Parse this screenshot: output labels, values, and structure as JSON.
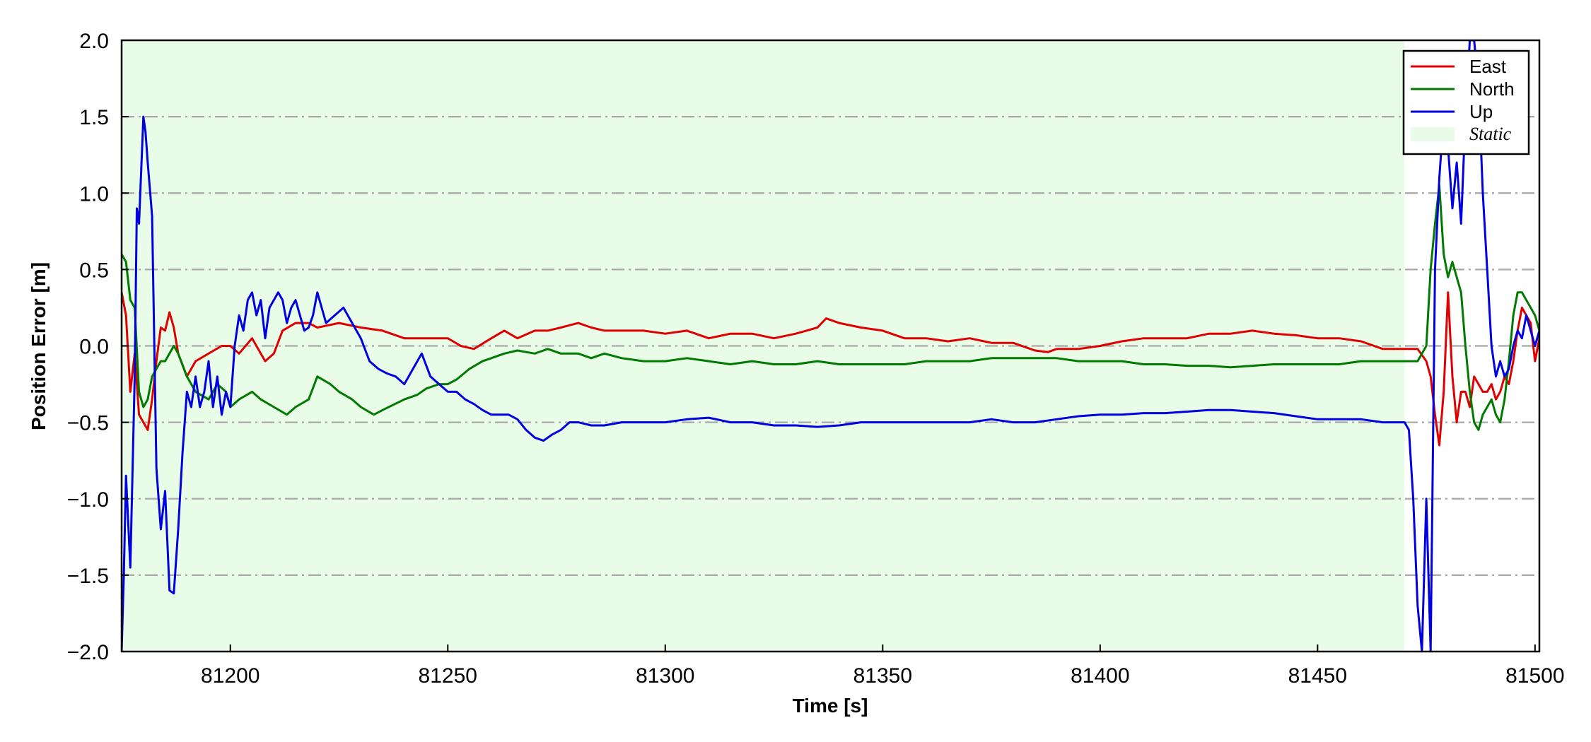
{
  "chart_data": {
    "type": "line",
    "title": "",
    "xlabel": "Time [s]",
    "ylabel": "Position Error [m]",
    "xlim": [
      81175,
      81501
    ],
    "ylim": [
      -2.0,
      2.0
    ],
    "x_ticks": [
      81200,
      81250,
      81300,
      81350,
      81400,
      81450,
      81500
    ],
    "x_tick_labels": [
      "81200",
      "81250",
      "81300",
      "81350",
      "81400",
      "81450",
      "81500"
    ],
    "y_ticks": [
      -2.0,
      -1.5,
      -1.0,
      -0.5,
      0.0,
      0.5,
      1.0,
      1.5,
      2.0
    ],
    "y_tick_labels": [
      "−2.0",
      "−1.5",
      "−1.0",
      "−0.5",
      "0.0",
      "0.5",
      "1.0",
      "1.5",
      "2.0"
    ],
    "grid": "horizontal dash-dot",
    "legend_position": "top-right",
    "static_region": {
      "label": "Static",
      "x_start": 81175,
      "x_end": 81470,
      "color": "#e8fce8"
    },
    "series": [
      {
        "name": "East",
        "color": "#e00000",
        "x": [
          81175,
          81176,
          81177,
          81178,
          81179,
          81180,
          81181,
          81182,
          81183,
          81184,
          81185,
          81186,
          81187,
          81188,
          81190,
          81192,
          81195,
          81198,
          81200,
          81202,
          81205,
          81208,
          81210,
          81212,
          81215,
          81218,
          81220,
          81225,
          81230,
          81235,
          81240,
          81245,
          81250,
          81253,
          81256,
          81260,
          81263,
          81266,
          81270,
          81273,
          81276,
          81280,
          81283,
          81286,
          81290,
          81295,
          81300,
          81305,
          81310,
          81315,
          81320,
          81325,
          81330,
          81335,
          81337,
          81340,
          81345,
          81350,
          81355,
          81360,
          81365,
          81370,
          81375,
          81380,
          81385,
          81388,
          81390,
          81395,
          81400,
          81405,
          81410,
          81415,
          81420,
          81425,
          81430,
          81435,
          81440,
          81445,
          81450,
          81455,
          81460,
          81465,
          81470,
          81473,
          81475,
          81476,
          81477,
          81478,
          81479,
          81480,
          81481,
          81482,
          81483,
          81484,
          81485,
          81486,
          81487,
          81488,
          81489,
          81490,
          81491,
          81492,
          81493,
          81494,
          81495,
          81496,
          81497,
          81498,
          81499,
          81500,
          81501
        ],
        "y": [
          0.35,
          0.2,
          -0.3,
          -0.05,
          -0.45,
          -0.5,
          -0.55,
          -0.35,
          -0.1,
          0.12,
          0.1,
          0.22,
          0.12,
          -0.05,
          -0.2,
          -0.1,
          -0.05,
          0.0,
          0.0,
          -0.05,
          0.05,
          -0.1,
          -0.05,
          0.1,
          0.15,
          0.15,
          0.12,
          0.15,
          0.12,
          0.1,
          0.05,
          0.05,
          0.05,
          0.0,
          -0.02,
          0.05,
          0.1,
          0.05,
          0.1,
          0.1,
          0.12,
          0.15,
          0.12,
          0.1,
          0.1,
          0.1,
          0.08,
          0.1,
          0.05,
          0.08,
          0.08,
          0.05,
          0.08,
          0.12,
          0.18,
          0.15,
          0.12,
          0.1,
          0.05,
          0.05,
          0.03,
          0.05,
          0.02,
          0.02,
          -0.03,
          -0.04,
          -0.02,
          -0.02,
          0.0,
          0.03,
          0.05,
          0.05,
          0.05,
          0.08,
          0.08,
          0.1,
          0.08,
          0.07,
          0.05,
          0.05,
          0.03,
          -0.02,
          -0.02,
          -0.02,
          -0.1,
          -0.2,
          -0.45,
          -0.65,
          -0.3,
          0.35,
          -0.2,
          -0.5,
          -0.3,
          -0.3,
          -0.4,
          -0.2,
          -0.25,
          -0.3,
          -0.3,
          -0.25,
          -0.35,
          -0.3,
          -0.2,
          -0.25,
          -0.1,
          0.1,
          0.25,
          0.2,
          0.15,
          -0.1,
          0.05
        ]
      },
      {
        "name": "North",
        "color": "#007a00",
        "x": [
          81175,
          81176,
          81177,
          81178,
          81179,
          81180,
          81181,
          81182,
          81183,
          81184,
          81185,
          81186,
          81187,
          81188,
          81190,
          81192,
          81195,
          81197,
          81199,
          81200,
          81202,
          81205,
          81207,
          81210,
          81213,
          81215,
          81218,
          81220,
          81223,
          81225,
          81228,
          81230,
          81233,
          81235,
          81240,
          81243,
          81245,
          81248,
          81250,
          81252,
          81255,
          81258,
          81260,
          81263,
          81266,
          81270,
          81273,
          81276,
          81280,
          81283,
          81286,
          81290,
          81295,
          81300,
          81305,
          81310,
          81315,
          81320,
          81325,
          81330,
          81335,
          81340,
          81345,
          81350,
          81355,
          81360,
          81365,
          81370,
          81375,
          81380,
          81385,
          81390,
          81395,
          81400,
          81405,
          81410,
          81415,
          81420,
          81425,
          81430,
          81435,
          81440,
          81445,
          81450,
          81455,
          81460,
          81465,
          81470,
          81473,
          81475,
          81476,
          81477,
          81478,
          81479,
          81480,
          81481,
          81482,
          81483,
          81484,
          81485,
          81486,
          81487,
          81488,
          81489,
          81490,
          81491,
          81492,
          81493,
          81494,
          81495,
          81496,
          81497,
          81498,
          81499,
          81500,
          81501
        ],
        "y": [
          0.6,
          0.55,
          0.3,
          0.25,
          -0.3,
          -0.4,
          -0.35,
          -0.2,
          -0.15,
          -0.1,
          -0.1,
          -0.05,
          0.0,
          -0.05,
          -0.2,
          -0.3,
          -0.35,
          -0.25,
          -0.3,
          -0.4,
          -0.35,
          -0.3,
          -0.35,
          -0.4,
          -0.45,
          -0.4,
          -0.35,
          -0.2,
          -0.25,
          -0.3,
          -0.35,
          -0.4,
          -0.45,
          -0.42,
          -0.35,
          -0.32,
          -0.28,
          -0.25,
          -0.25,
          -0.22,
          -0.15,
          -0.1,
          -0.08,
          -0.05,
          -0.03,
          -0.05,
          -0.02,
          -0.05,
          -0.05,
          -0.08,
          -0.05,
          -0.08,
          -0.1,
          -0.1,
          -0.08,
          -0.1,
          -0.12,
          -0.1,
          -0.12,
          -0.12,
          -0.1,
          -0.12,
          -0.12,
          -0.12,
          -0.12,
          -0.1,
          -0.1,
          -0.1,
          -0.08,
          -0.08,
          -0.08,
          -0.08,
          -0.1,
          -0.1,
          -0.1,
          -0.12,
          -0.12,
          -0.13,
          -0.13,
          -0.14,
          -0.13,
          -0.12,
          -0.12,
          -0.12,
          -0.12,
          -0.1,
          -0.1,
          -0.1,
          -0.1,
          0.0,
          0.5,
          0.8,
          1.05,
          0.6,
          0.45,
          0.55,
          0.45,
          0.35,
          0.0,
          -0.3,
          -0.5,
          -0.55,
          -0.45,
          -0.4,
          -0.35,
          -0.45,
          -0.5,
          -0.35,
          -0.1,
          0.2,
          0.35,
          0.35,
          0.3,
          0.25,
          0.2,
          0.1
        ]
      },
      {
        "name": "Up",
        "color": "#0000e0",
        "x": [
          81175,
          81175.5,
          81176,
          81177,
          81178,
          81178.5,
          81179,
          81180,
          81180.5,
          81181,
          81182,
          81183,
          81184,
          81185,
          81186,
          81187,
          81188,
          81189,
          81190,
          81191,
          81192,
          81193,
          81194,
          81195,
          81196,
          81197,
          81198,
          81199,
          81200,
          81201,
          81202,
          81203,
          81204,
          81205,
          81206,
          81207,
          81208,
          81209,
          81210,
          81211,
          81212,
          81213,
          81214,
          81215,
          81216,
          81217,
          81218,
          81219,
          81220,
          81222,
          81224,
          81226,
          81228,
          81230,
          81232,
          81234,
          81236,
          81238,
          81240,
          81242,
          81244,
          81246,
          81248,
          81250,
          81252,
          81254,
          81256,
          81258,
          81260,
          81262,
          81264,
          81266,
          81268,
          81270,
          81272,
          81274,
          81276,
          81278,
          81280,
          81283,
          81286,
          81290,
          81295,
          81300,
          81305,
          81310,
          81315,
          81320,
          81325,
          81330,
          81335,
          81340,
          81345,
          81350,
          81355,
          81360,
          81365,
          81370,
          81375,
          81380,
          81385,
          81390,
          81395,
          81400,
          81405,
          81410,
          81415,
          81420,
          81425,
          81430,
          81435,
          81440,
          81445,
          81450,
          81455,
          81460,
          81465,
          81469,
          81470,
          81471,
          81472,
          81473,
          81474,
          81475,
          81476,
          81477,
          81478,
          81479,
          81480,
          81481,
          81482,
          81483,
          81484,
          81485,
          81486,
          81487,
          81488,
          81489,
          81490,
          81491,
          81492,
          81493,
          81494,
          81495,
          81496,
          81497,
          81498,
          81499,
          81500,
          81501
        ],
        "y": [
          -2.0,
          -1.5,
          -0.85,
          -1.45,
          -0.2,
          0.9,
          0.8,
          1.5,
          1.4,
          1.2,
          0.85,
          -0.8,
          -1.2,
          -0.95,
          -1.6,
          -1.62,
          -1.2,
          -0.7,
          -0.3,
          -0.4,
          -0.2,
          -0.4,
          -0.3,
          -0.1,
          -0.4,
          -0.2,
          -0.45,
          -0.3,
          -0.4,
          0.0,
          0.2,
          0.1,
          0.3,
          0.35,
          0.2,
          0.3,
          0.05,
          0.25,
          0.3,
          0.35,
          0.3,
          0.15,
          0.25,
          0.3,
          0.2,
          0.1,
          0.12,
          0.2,
          0.35,
          0.15,
          0.2,
          0.25,
          0.15,
          0.05,
          -0.1,
          -0.15,
          -0.18,
          -0.2,
          -0.25,
          -0.15,
          -0.05,
          -0.2,
          -0.25,
          -0.3,
          -0.3,
          -0.35,
          -0.38,
          -0.42,
          -0.45,
          -0.45,
          -0.45,
          -0.48,
          -0.55,
          -0.6,
          -0.62,
          -0.58,
          -0.55,
          -0.5,
          -0.5,
          -0.52,
          -0.52,
          -0.5,
          -0.5,
          -0.5,
          -0.48,
          -0.47,
          -0.5,
          -0.5,
          -0.52,
          -0.52,
          -0.53,
          -0.52,
          -0.5,
          -0.5,
          -0.5,
          -0.5,
          -0.5,
          -0.5,
          -0.48,
          -0.5,
          -0.5,
          -0.48,
          -0.46,
          -0.45,
          -0.45,
          -0.44,
          -0.44,
          -0.43,
          -0.42,
          -0.42,
          -0.43,
          -0.44,
          -0.46,
          -0.48,
          -0.48,
          -0.48,
          -0.5,
          -0.5,
          -0.5,
          -0.55,
          -1.0,
          -1.7,
          -2.0,
          -1.0,
          -2.0,
          0.5,
          1.1,
          1.5,
          1.3,
          0.9,
          1.2,
          0.8,
          1.5,
          2.0,
          2.0,
          1.7,
          1.0,
          0.5,
          0.0,
          -0.2,
          -0.1,
          -0.2,
          -0.15,
          0.0,
          0.1,
          0.05,
          0.2,
          0.1,
          0.0,
          0.1
        ]
      }
    ]
  }
}
